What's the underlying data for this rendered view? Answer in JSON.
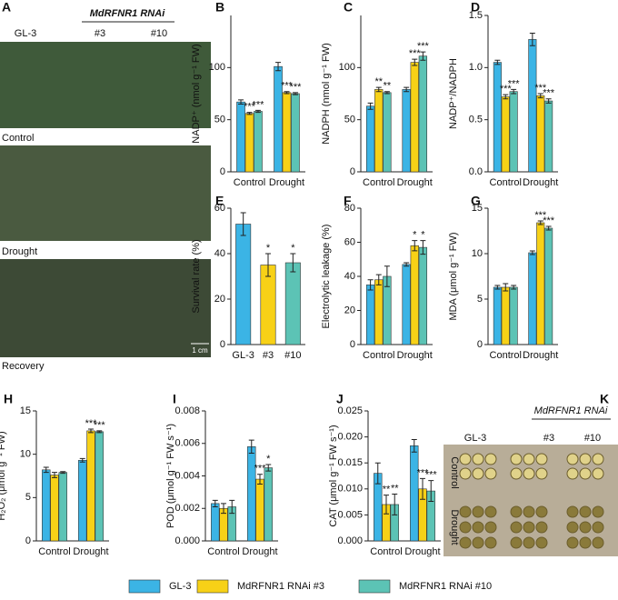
{
  "photos": {
    "panel_a": {
      "letter": "A",
      "group_label": "MdRFNR1 RNAi",
      "genotypes": [
        "GL-3",
        "#3",
        "#10"
      ],
      "conditions": [
        "Control",
        "Drought",
        "Recovery"
      ],
      "scale_bar": "1 cm"
    },
    "panel_k": {
      "letter": "K",
      "group_label": "MdRFNR1 RNAi",
      "genotypes": [
        "GL-3",
        "#3",
        "#10"
      ],
      "conditions": [
        "Control",
        "Drought"
      ]
    }
  },
  "legend": [
    {
      "name": "GL-3",
      "color": "#3bb4e5"
    },
    {
      "name": "MdRFNR1 RNAi #3",
      "color": "#f7d117"
    },
    {
      "name": "MdRFNR1 RNAi #10",
      "color": "#5cc3b5"
    }
  ],
  "chart_data": [
    {
      "type": "grouped_bar",
      "letter": "B",
      "ylabel": "NADP⁺ (nmol g⁻¹ FW)",
      "categories": [
        "Control",
        "Drought"
      ],
      "ylim": [
        0,
        150
      ],
      "yticks": [
        0,
        50,
        100
      ],
      "series": [
        {
          "values": [
            67,
            101
          ],
          "errors": [
            2,
            4
          ],
          "sig": [
            null,
            null
          ]
        },
        {
          "values": [
            56,
            76
          ],
          "errors": [
            1,
            1
          ],
          "sig": [
            "***",
            "***"
          ]
        },
        {
          "values": [
            58,
            75
          ],
          "errors": [
            1,
            1
          ],
          "sig": [
            "***",
            "***"
          ]
        }
      ]
    },
    {
      "type": "grouped_bar",
      "letter": "C",
      "ylabel": "NADPH (nmol g⁻¹ FW)",
      "categories": [
        "Control",
        "Drought"
      ],
      "ylim": [
        0,
        150
      ],
      "yticks": [
        0,
        50,
        100
      ],
      "series": [
        {
          "values": [
            63,
            79
          ],
          "errors": [
            3,
            2
          ],
          "sig": [
            null,
            null
          ]
        },
        {
          "values": [
            79,
            105
          ],
          "errors": [
            2,
            3
          ],
          "sig": [
            "**",
            "***"
          ]
        },
        {
          "values": [
            76,
            111
          ],
          "errors": [
            1,
            4
          ],
          "sig": [
            "**",
            "***"
          ]
        }
      ]
    },
    {
      "type": "grouped_bar",
      "letter": "D",
      "ylabel": "NADP⁺/NADPH",
      "categories": [
        "Control",
        "Drought"
      ],
      "ylim": [
        0,
        1.5
      ],
      "yticks": [
        {
          "value": 0,
          "label": "0.0"
        },
        0.5,
        {
          "value": 1,
          "label": "1.0"
        },
        1.5
      ],
      "series": [
        {
          "values": [
            1.05,
            1.27
          ],
          "errors": [
            0.02,
            0.06
          ],
          "sig": [
            null,
            null
          ]
        },
        {
          "values": [
            0.72,
            0.73
          ],
          "errors": [
            0.02,
            0.02
          ],
          "sig": [
            "***",
            "***"
          ]
        },
        {
          "values": [
            0.77,
            0.68
          ],
          "errors": [
            0.02,
            0.02
          ],
          "sig": [
            "***",
            "***"
          ]
        }
      ]
    },
    {
      "type": "bar",
      "letter": "E",
      "ylabel": "Survival rate (%)",
      "categories": [
        "GL-3",
        "#3",
        "#10"
      ],
      "ylim": [
        0,
        60
      ],
      "yticks": [
        0,
        20,
        40,
        60
      ],
      "values": [
        53,
        35,
        36
      ],
      "errors": [
        5,
        5,
        4
      ],
      "sig": [
        null,
        "*",
        "*"
      ]
    },
    {
      "type": "grouped_bar",
      "letter": "F",
      "ylabel": "Electrolytic leakage (%)",
      "categories": [
        "Control",
        "Drought"
      ],
      "ylim": [
        0,
        80
      ],
      "yticks": [
        0,
        20,
        40,
        60,
        80
      ],
      "series": [
        {
          "values": [
            35,
            47
          ],
          "errors": [
            3,
            1
          ],
          "sig": [
            null,
            null
          ]
        },
        {
          "values": [
            38,
            58
          ],
          "errors": [
            3,
            3
          ],
          "sig": [
            null,
            "*"
          ]
        },
        {
          "values": [
            40,
            57
          ],
          "errors": [
            6,
            4
          ],
          "sig": [
            null,
            "*"
          ]
        }
      ]
    },
    {
      "type": "grouped_bar",
      "letter": "G",
      "ylabel": "MDA (μmol g⁻¹ FW)",
      "categories": [
        "Control",
        "Drought"
      ],
      "ylim": [
        0,
        15
      ],
      "yticks": [
        0,
        5,
        10,
        15
      ],
      "series": [
        {
          "values": [
            6.3,
            10.1
          ],
          "errors": [
            0.2,
            0.2
          ],
          "sig": [
            null,
            null
          ]
        },
        {
          "values": [
            6.3,
            13.4
          ],
          "errors": [
            0.4,
            0.2
          ],
          "sig": [
            null,
            "***"
          ]
        },
        {
          "values": [
            6.3,
            12.8
          ],
          "errors": [
            0.2,
            0.2
          ],
          "sig": [
            null,
            "***"
          ]
        }
      ]
    },
    {
      "type": "grouped_bar",
      "letter": "H",
      "ylabel": "H₂O₂ (μmol g⁻¹ FW)",
      "categories": [
        "Control",
        "Drought"
      ],
      "ylim": [
        0,
        15
      ],
      "yticks": [
        0,
        5,
        10,
        15
      ],
      "series": [
        {
          "values": [
            8.2,
            9.3
          ],
          "errors": [
            0.3,
            0.2
          ],
          "sig": [
            null,
            null
          ]
        },
        {
          "values": [
            7.6,
            12.7
          ],
          "errors": [
            0.3,
            0.2
          ],
          "sig": [
            null,
            "***"
          ]
        },
        {
          "values": [
            7.9,
            12.6
          ],
          "errors": [
            0.1,
            0.1
          ],
          "sig": [
            null,
            "***"
          ]
        }
      ]
    },
    {
      "type": "grouped_bar",
      "letter": "I",
      "ylabel": "POD (μmol g⁻¹ FW s⁻¹)",
      "categories": [
        "Control",
        "Drought"
      ],
      "ylim": [
        0,
        0.008
      ],
      "yticks": [
        {
          "value": 0,
          "label": "0.000"
        },
        {
          "value": 0.002,
          "label": "0.002"
        },
        {
          "value": 0.004,
          "label": "0.004"
        },
        {
          "value": 0.006,
          "label": "0.006"
        },
        {
          "value": 0.008,
          "label": "0.008"
        }
      ],
      "series": [
        {
          "values": [
            0.0023,
            0.0058
          ],
          "errors": [
            0.0002,
            0.0004
          ],
          "sig": [
            null,
            null
          ]
        },
        {
          "values": [
            0.002,
            0.0038
          ],
          "errors": [
            0.0003,
            0.0003
          ],
          "sig": [
            null,
            "***"
          ]
        },
        {
          "values": [
            0.0021,
            0.0045
          ],
          "errors": [
            0.0004,
            0.0002
          ],
          "sig": [
            null,
            "*"
          ]
        }
      ]
    },
    {
      "type": "grouped_bar",
      "letter": "J",
      "ylabel": "CAT (μmol g⁻¹ FW s⁻¹)",
      "categories": [
        "Control",
        "Drought"
      ],
      "ylim": [
        0,
        0.025
      ],
      "yticks": [
        {
          "value": 0,
          "label": "0.000"
        },
        0.005,
        {
          "value": 0.01,
          "label": "0.010"
        },
        0.015,
        {
          "value": 0.02,
          "label": "0.020"
        },
        0.025
      ],
      "series": [
        {
          "values": [
            0.013,
            0.0183
          ],
          "errors": [
            0.002,
            0.0012
          ],
          "sig": [
            null,
            null
          ]
        },
        {
          "values": [
            0.007,
            0.01
          ],
          "errors": [
            0.0018,
            0.002
          ],
          "sig": [
            "**",
            "***"
          ]
        },
        {
          "values": [
            0.007,
            0.0096
          ],
          "errors": [
            0.002,
            0.002
          ],
          "sig": [
            "**",
            "***"
          ]
        }
      ]
    }
  ]
}
